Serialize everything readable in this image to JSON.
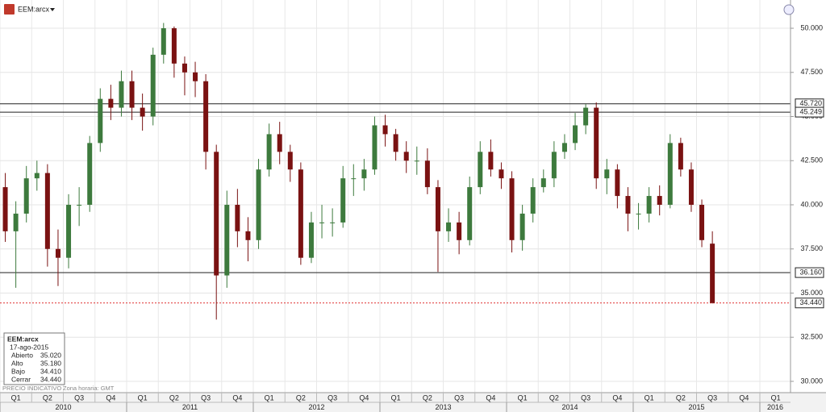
{
  "header": {
    "symbol": "EEM:arcx"
  },
  "chart_data": {
    "type": "candlestick",
    "up_color": "#3d7a3d",
    "down_color": "#7a1212",
    "candles": {
      "open": [
        41.0,
        38.5,
        39.5,
        41.5,
        41.8,
        37.5,
        37.0,
        40.0,
        40.0,
        43.5,
        46.0,
        45.5,
        47.0,
        45.5,
        45.0,
        48.5,
        50.0,
        48.0,
        47.5,
        47.0,
        43.0,
        36.0,
        40.0,
        38.5,
        38.0,
        42.0,
        44.0,
        43.0,
        42.0,
        37.0,
        39.0,
        39.0,
        39.0,
        41.5,
        41.5,
        42.0,
        44.5,
        44.0,
        43.0,
        42.5,
        42.5,
        41.0,
        38.5,
        39.0,
        38.0,
        41.0,
        43.0,
        42.0,
        41.5,
        38.0,
        39.5,
        41.0,
        41.5,
        43.0,
        43.5,
        44.5,
        45.5,
        41.5,
        42.0,
        40.5,
        39.5,
        39.5,
        40.5,
        40.0,
        43.5,
        42.0,
        40.0,
        37.8
      ],
      "high": [
        41.8,
        40.2,
        42.2,
        42.5,
        42.3,
        38.6,
        40.6,
        41.0,
        43.9,
        46.6,
        46.8,
        47.6,
        47.6,
        46.3,
        48.9,
        50.3,
        50.1,
        48.4,
        48.1,
        47.4,
        43.4,
        40.8,
        40.9,
        39.3,
        42.6,
        44.6,
        44.7,
        43.4,
        42.4,
        39.6,
        40.0,
        39.8,
        42.2,
        42.3,
        42.6,
        45.0,
        45.1,
        44.3,
        43.6,
        43.3,
        43.2,
        41.4,
        39.8,
        39.6,
        41.6,
        43.6,
        43.7,
        42.4,
        41.9,
        40.0,
        41.5,
        42.0,
        43.6,
        44.0,
        45.2,
        45.7,
        45.8,
        42.6,
        42.3,
        41.0,
        40.1,
        41.0,
        41.1,
        44.0,
        43.8,
        42.4,
        40.3,
        38.5
      ],
      "low": [
        37.9,
        35.3,
        39.0,
        40.8,
        36.5,
        35.4,
        36.4,
        38.8,
        39.6,
        43.0,
        44.8,
        45.0,
        44.8,
        44.2,
        44.5,
        48.0,
        47.2,
        46.2,
        46.1,
        42.0,
        33.5,
        35.3,
        37.6,
        36.8,
        37.5,
        41.6,
        42.3,
        41.3,
        36.6,
        36.7,
        38.1,
        38.2,
        38.7,
        40.5,
        40.8,
        41.7,
        43.3,
        42.5,
        41.8,
        41.7,
        40.6,
        36.2,
        37.9,
        37.2,
        37.7,
        40.6,
        41.6,
        40.9,
        37.3,
        37.4,
        39.0,
        40.7,
        41.0,
        42.6,
        43.1,
        44.0,
        40.9,
        40.6,
        39.8,
        38.5,
        38.6,
        39.0,
        39.4,
        39.8,
        41.6,
        39.6,
        37.6,
        34.41
      ],
      "close": [
        38.5,
        39.5,
        41.5,
        41.8,
        37.5,
        37.0,
        40.0,
        40.0,
        43.5,
        46.0,
        45.5,
        47.0,
        45.5,
        45.0,
        48.5,
        50.0,
        48.0,
        47.5,
        47.0,
        43.0,
        36.0,
        40.0,
        38.5,
        38.0,
        42.0,
        44.0,
        43.0,
        42.0,
        37.0,
        39.0,
        39.0,
        39.0,
        41.5,
        41.5,
        42.0,
        44.5,
        44.0,
        43.0,
        42.5,
        42.5,
        41.0,
        38.5,
        39.0,
        38.0,
        41.0,
        43.0,
        42.0,
        41.5,
        38.0,
        39.5,
        41.0,
        41.5,
        43.0,
        43.5,
        44.5,
        45.5,
        41.5,
        42.0,
        40.5,
        39.5,
        39.5,
        40.5,
        40.0,
        43.5,
        42.0,
        40.0,
        38.0,
        34.44
      ]
    },
    "ylim": [
      29.36,
      51.6
    ],
    "yticks": [
      {
        "value": 30,
        "label": "30.000"
      },
      {
        "value": 32.5,
        "label": "32.500"
      },
      {
        "value": 35,
        "label": "35.000"
      },
      {
        "value": 37.5,
        "label": "37.500"
      },
      {
        "value": 40,
        "label": "40.000"
      },
      {
        "value": 42.5,
        "label": "42.500"
      },
      {
        "value": 45,
        "label": "45.000"
      },
      {
        "value": 47.5,
        "label": "47.500"
      },
      {
        "value": 50,
        "label": "50.000"
      }
    ],
    "levels": [
      {
        "value": 45.72,
        "label": "45.720"
      },
      {
        "value": 45.249,
        "label": "45.249"
      },
      {
        "value": 36.16,
        "label": "36.160"
      }
    ],
    "last_price": {
      "value": 34.44,
      "label": "34.440",
      "color": "#e03030"
    },
    "quarters": [
      "Q1",
      "Q2",
      "Q3",
      "Q4",
      "Q1",
      "Q2",
      "Q3",
      "Q4",
      "Q1",
      "Q2",
      "Q3",
      "Q4",
      "Q1",
      "Q2",
      "Q3",
      "Q4",
      "Q1",
      "Q2",
      "Q3",
      "Q4",
      "Q1",
      "Q2",
      "Q3",
      "Q4",
      "Q1"
    ],
    "years": [
      "2010",
      "2011",
      "2012",
      "2013",
      "2014",
      "2015",
      "2016"
    ],
    "grid": true
  },
  "info": {
    "symbol": "EEM:arcx",
    "date": "17-ago-2015",
    "rows": [
      [
        "Abierto",
        "35.020"
      ],
      [
        "Alto",
        "35.180"
      ],
      [
        "Bajo",
        "34.410"
      ],
      [
        "Cerrar",
        "34.440"
      ]
    ]
  },
  "footer": {
    "note": "PRECIO INDICATIVO",
    "timezone": "Zona horaria: GMT"
  }
}
